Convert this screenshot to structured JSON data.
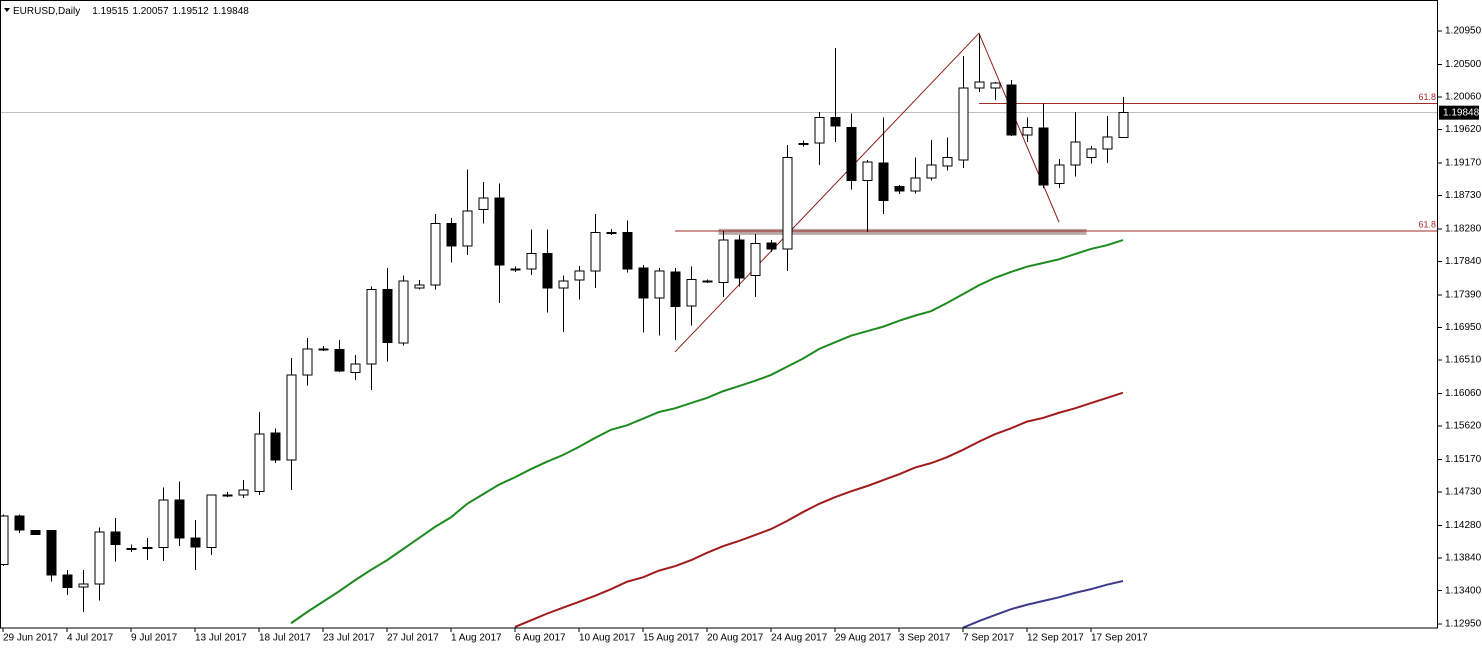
{
  "chart_data": {
    "type": "candlestick",
    "title": "EURUSD,Daily",
    "categories": [
      "29 Jun 2017",
      null,
      null,
      null,
      "4 Jul 2017",
      null,
      null,
      null,
      "9 Jul 2017",
      null,
      null,
      null,
      "13 Jul 2017",
      null,
      null,
      null,
      "18 Jul 2017",
      null,
      null,
      null,
      "23 Jul 2017",
      null,
      null,
      null,
      "27 Jul 2017",
      null,
      null,
      null,
      "1 Aug 2017",
      null,
      null,
      null,
      "6 Aug 2017",
      null,
      null,
      null,
      "10 Aug 2017",
      null,
      null,
      null,
      "15 Aug 2017",
      null,
      null,
      null,
      "20 Aug 2017",
      null,
      null,
      null,
      "24 Aug 2017",
      null,
      null,
      null,
      "29 Aug 2017",
      null,
      null,
      null,
      "3 Sep 2017",
      null,
      null,
      null,
      "7 Sep 2017",
      null,
      null,
      null,
      "12 Sep 2017",
      null,
      null,
      null,
      "17 Sep 2017",
      null,
      null
    ],
    "open": [
      1.1375,
      1.1441,
      1.1421,
      1.1421,
      1.1361,
      1.1345,
      1.1349,
      1.1419,
      1.1397,
      1.1398,
      1.1398,
      1.1462,
      1.1411,
      1.1398,
      1.1469,
      1.1469,
      1.1474,
      1.1553,
      1.1516,
      1.1631,
      1.1666,
      1.1665,
      1.1634,
      1.1646,
      1.1746,
      1.1674,
      1.1748,
      1.1752,
      1.1835,
      1.1805,
      1.1854,
      1.187,
      1.1774,
      1.1774,
      1.1795,
      1.1748,
      1.1759,
      1.1771,
      1.1823,
      1.1823,
      1.1775,
      1.1735,
      1.177,
      1.1724,
      1.1758,
      1.1756,
      1.1813,
      1.1765,
      1.1809,
      1.1801,
      1.1943,
      1.1944,
      1.1978,
      1.1965,
      1.1893,
      1.1917,
      1.1885,
      1.1879,
      1.1897,
      1.1913,
      1.1921,
      1.2018,
      1.2018,
      1.2022,
      1.1955,
      1.1964,
      1.1889,
      1.1914,
      1.1924,
      1.1936,
      1.19515
    ],
    "high": [
      1.1443,
      1.1443,
      1.1422,
      1.1422,
      1.1368,
      1.1368,
      1.1425,
      1.1438,
      1.1402,
      1.1411,
      1.1479,
      1.1487,
      1.1435,
      1.147,
      1.1473,
      1.1489,
      1.1581,
      1.1559,
      1.1654,
      1.1681,
      1.167,
      1.1678,
      1.1658,
      1.175,
      1.1775,
      1.1765,
      1.1759,
      1.1848,
      1.1843,
      1.1908,
      1.1891,
      1.1889,
      1.1777,
      1.1827,
      1.1827,
      1.1765,
      1.1778,
      1.1848,
      1.1828,
      1.1839,
      1.1779,
      1.1775,
      1.1775,
      1.1777,
      1.176,
      1.1825,
      1.182,
      1.1821,
      1.1813,
      1.1941,
      1.1947,
      1.1986,
      1.2072,
      1.1984,
      1.1921,
      1.1978,
      1.1887,
      1.1924,
      1.1948,
      1.1951,
      1.2061,
      1.2091,
      1.2026,
      1.2029,
      1.1978,
      1.1997,
      1.1922,
      1.1986,
      1.194,
      1.198,
      1.20057
    ],
    "low": [
      1.1373,
      1.1418,
      1.1415,
      1.1352,
      1.1334,
      1.1311,
      1.1327,
      1.1379,
      1.1392,
      1.1381,
      1.138,
      1.14,
      1.1368,
      1.1388,
      1.1466,
      1.1465,
      1.1469,
      1.1512,
      1.1476,
      1.1617,
      1.1663,
      1.1635,
      1.1624,
      1.1611,
      1.1649,
      1.1671,
      1.1746,
      1.1746,
      1.1783,
      1.1793,
      1.1835,
      1.1728,
      1.177,
      1.1766,
      1.1715,
      1.1689,
      1.1733,
      1.1748,
      1.182,
      1.1769,
      1.1688,
      1.1684,
      1.1678,
      1.1698,
      1.1755,
      1.1736,
      1.175,
      1.1736,
      1.1797,
      1.1771,
      1.1939,
      1.1914,
      1.1945,
      1.1881,
      1.1824,
      1.1848,
      1.1875,
      1.1876,
      1.1893,
      1.1907,
      1.191,
      1.2013,
      1.2002,
      1.1953,
      1.1945,
      1.1883,
      1.1883,
      1.1899,
      1.1916,
      1.1917,
      1.19512
    ],
    "close": [
      1.1441,
      1.1422,
      1.1416,
      1.1361,
      1.1344,
      1.1349,
      1.1419,
      1.1402,
      1.1396,
      1.1397,
      1.1462,
      1.1411,
      1.1399,
      1.1469,
      1.1468,
      1.1476,
      1.1551,
      1.1516,
      1.1631,
      1.1666,
      1.1665,
      1.1636,
      1.1646,
      1.1746,
      1.1675,
      1.1758,
      1.1752,
      1.1835,
      1.1805,
      1.1852,
      1.187,
      1.1779,
      1.1773,
      1.1795,
      1.1748,
      1.1758,
      1.1771,
      1.1823,
      1.1822,
      1.1774,
      1.1735,
      1.1771,
      1.1723,
      1.176,
      1.1757,
      1.1813,
      1.1762,
      1.1808,
      1.1801,
      1.1924,
      1.1942,
      1.1978,
      1.1967,
      1.1893,
      1.1918,
      1.1866,
      1.1879,
      1.1897,
      1.1914,
      1.1924,
      1.2018,
      1.2026,
      1.2025,
      1.1955,
      1.1965,
      1.1887,
      1.1914,
      1.1945,
      1.1936,
      1.1952,
      1.19848
    ],
    "up_color": "#ffffff",
    "down_color": "#000000",
    "ylim": [
      1.12896,
      1.21368
    ],
    "yticks": [
      {
        "value": 1.2095,
        "label": "1.20950"
      },
      {
        "value": 1.205,
        "label": "1.20500"
      },
      {
        "value": 1.2006,
        "label": "1.20060"
      },
      {
        "value": 1.1962,
        "label": "1.19620"
      },
      {
        "value": 1.1917,
        "label": "1.19170"
      },
      {
        "value": 1.1873,
        "label": "1.18730"
      },
      {
        "value": 1.1828,
        "label": "1.18280"
      },
      {
        "value": 1.1784,
        "label": "1.17840"
      },
      {
        "value": 1.1739,
        "label": "1.17390"
      },
      {
        "value": 1.1695,
        "label": "1.16950"
      },
      {
        "value": 1.1651,
        "label": "1.16510"
      },
      {
        "value": 1.1606,
        "label": "1.16060"
      },
      {
        "value": 1.1562,
        "label": "1.15620"
      },
      {
        "value": 1.1517,
        "label": "1.15170"
      },
      {
        "value": 1.1473,
        "label": "1.14730"
      },
      {
        "value": 1.1428,
        "label": "1.14280"
      },
      {
        "value": 1.1384,
        "label": "1.13840"
      },
      {
        "value": 1.134,
        "label": "1.13400"
      },
      {
        "value": 1.1295,
        "label": "1.12950"
      }
    ],
    "moving_averages": [
      {
        "color": "#1f8a1f",
        "values": [
          null,
          null,
          null,
          null,
          null,
          null,
          null,
          null,
          null,
          null,
          null,
          null,
          null,
          null,
          null,
          null,
          null,
          null,
          1.1296,
          1.1311,
          1.1325,
          1.1339,
          1.1354,
          1.1368,
          1.1381,
          1.1396,
          1.1411,
          1.1426,
          1.1439,
          1.1457,
          1.147,
          1.1483,
          1.1493,
          1.1504,
          1.1514,
          1.1523,
          1.1534,
          1.1546,
          1.1557,
          1.1563,
          1.1572,
          1.1581,
          1.1586,
          1.1593,
          1.16,
          1.1609,
          1.1616,
          1.1623,
          1.1631,
          1.1642,
          1.1653,
          1.1666,
          1.1675,
          1.1684,
          1.169,
          1.1696,
          1.1704,
          1.1711,
          1.1717,
          1.1728,
          1.174,
          1.1752,
          1.1762,
          1.177,
          1.1777,
          1.1782,
          1.1787,
          1.1794,
          1.1801,
          1.1806,
          1.1813
        ]
      },
      {
        "color": "#a01c1c",
        "values": [
          null,
          null,
          null,
          null,
          null,
          null,
          null,
          null,
          null,
          null,
          null,
          null,
          null,
          null,
          null,
          null,
          null,
          null,
          null,
          null,
          null,
          null,
          null,
          null,
          null,
          null,
          null,
          null,
          null,
          null,
          null,
          null,
          1.1291,
          1.13,
          1.1309,
          1.1317,
          1.1325,
          1.1333,
          1.1342,
          1.1352,
          1.1358,
          1.1367,
          1.1373,
          1.1381,
          1.1391,
          1.14,
          1.1407,
          1.1415,
          1.1423,
          1.1434,
          1.1446,
          1.1457,
          1.1466,
          1.1474,
          1.1481,
          1.1489,
          1.1497,
          1.1506,
          1.1512,
          1.152,
          1.153,
          1.1541,
          1.1551,
          1.1559,
          1.1568,
          1.1573,
          1.158,
          1.1586,
          1.1593,
          1.16,
          1.1607
        ]
      },
      {
        "color": "#3c3c8c",
        "values": [
          null,
          null,
          null,
          null,
          null,
          null,
          null,
          null,
          null,
          null,
          null,
          null,
          null,
          null,
          null,
          null,
          null,
          null,
          null,
          null,
          null,
          null,
          null,
          null,
          null,
          null,
          null,
          null,
          null,
          null,
          null,
          null,
          null,
          null,
          null,
          null,
          null,
          null,
          null,
          null,
          null,
          null,
          null,
          null,
          null,
          null,
          null,
          null,
          null,
          null,
          null,
          null,
          null,
          null,
          null,
          null,
          null,
          null,
          null,
          null,
          1.129,
          1.1299,
          1.1307,
          1.1315,
          1.1321,
          1.1326,
          1.1331,
          1.1337,
          1.1342,
          1.1348,
          1.1353
        ]
      }
    ],
    "zigzag": {
      "color": "#8b1a1a",
      "bars": [
        42,
        61,
        66
      ],
      "prices": [
        1.1662,
        1.2092,
        1.1837
      ]
    },
    "levels": [
      {
        "label": "61.8",
        "price": 1.1997,
        "start_bar": 61,
        "color": "#a52a2a"
      },
      {
        "label": "61.8",
        "price": 1.1825,
        "start_bar": 42,
        "color": "#a52a2a"
      }
    ],
    "zone": {
      "start_bar": 45,
      "end_bar": 68,
      "top": 1.1828,
      "bottom": 1.182,
      "color": "#b9a6a6"
    },
    "last_price_line": true
  }
}
